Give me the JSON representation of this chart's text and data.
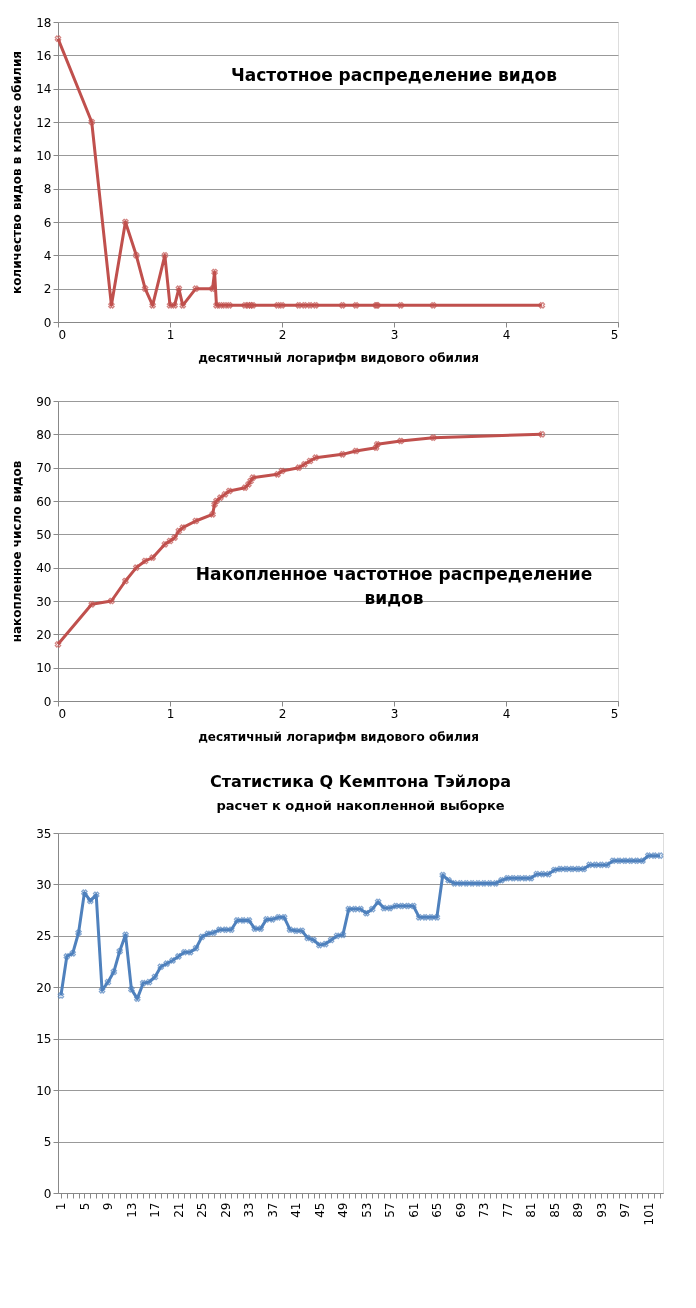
{
  "chart_data": [
    {
      "type": "line",
      "title": "Частотное распределение видов",
      "xlabel": "десятичный логарифм видового обилия",
      "ylabel": "количество видов в классе обилия",
      "x": [
        0,
        0.301,
        0.477,
        0.602,
        0.699,
        0.778,
        0.845,
        0.954,
        1.0,
        1.041,
        1.079,
        1.114,
        1.23,
        1.38,
        1.398,
        1.415,
        1.45,
        1.49,
        1.53,
        1.67,
        1.7,
        1.72,
        1.74,
        1.96,
        2.0,
        2.15,
        2.2,
        2.25,
        2.3,
        2.54,
        2.66,
        2.84,
        2.85,
        3.06,
        3.35,
        4.32
      ],
      "series": [
        {
          "color": "#c0504d",
          "values": [
            17,
            12,
            1,
            6,
            4,
            2,
            1,
            4,
            1,
            1,
            2,
            1,
            2,
            2,
            3,
            1,
            1,
            1,
            1,
            1,
            1,
            1,
            1,
            1,
            1,
            1,
            1,
            1,
            1,
            1,
            1,
            1,
            1,
            1,
            1,
            1
          ]
        }
      ],
      "xlim": [
        0,
        5
      ],
      "xticks": [
        0,
        1,
        2,
        3,
        4,
        5
      ],
      "ylim": [
        0,
        18
      ],
      "yticks": [
        0,
        2,
        4,
        6,
        8,
        10,
        12,
        14,
        16,
        18
      ],
      "grid": "y",
      "marker": "cross"
    },
    {
      "type": "line",
      "title": "Накопленное частотное распределение\nвидов",
      "xlabel": "десятичный логарифм видового обилия",
      "ylabel": "накопленное число видов",
      "x": [
        0,
        0.301,
        0.477,
        0.602,
        0.699,
        0.778,
        0.845,
        0.954,
        1.0,
        1.041,
        1.079,
        1.114,
        1.23,
        1.38,
        1.398,
        1.415,
        1.45,
        1.49,
        1.53,
        1.67,
        1.7,
        1.72,
        1.74,
        1.96,
        2.0,
        2.15,
        2.2,
        2.25,
        2.3,
        2.54,
        2.66,
        2.84,
        2.85,
        3.06,
        3.35,
        4.32
      ],
      "series": [
        {
          "color": "#c0504d",
          "values": [
            17,
            29,
            30,
            36,
            40,
            42,
            43,
            47,
            48,
            49,
            51,
            52,
            54,
            56,
            59,
            60,
            61,
            62,
            63,
            64,
            65,
            66,
            67,
            68,
            69,
            70,
            71,
            72,
            73,
            74,
            75,
            76,
            77,
            78,
            79,
            80
          ]
        }
      ],
      "xlim": [
        0,
        5
      ],
      "xticks": [
        0,
        1,
        2,
        3,
        4,
        5
      ],
      "ylim": [
        0,
        90
      ],
      "yticks": [
        0,
        10,
        20,
        30,
        40,
        50,
        60,
        70,
        80,
        90
      ],
      "grid": "y",
      "marker": "cross"
    },
    {
      "type": "line",
      "title": "Статистика Q Кемптона Тэйлора",
      "subtitle": "расчет к одной накопленной выборке",
      "categories": [
        "1",
        null,
        null,
        null,
        "5",
        null,
        null,
        null,
        "9",
        null,
        null,
        null,
        "13",
        null,
        null,
        null,
        "17",
        null,
        null,
        null,
        "21",
        null,
        null,
        null,
        "25",
        null,
        null,
        null,
        "29",
        null,
        null,
        null,
        "33",
        null,
        null,
        null,
        "37",
        null,
        null,
        null,
        "41",
        null,
        null,
        null,
        "45",
        null,
        null,
        null,
        "49",
        null,
        null,
        null,
        "53",
        null,
        null,
        null,
        "57",
        null,
        null,
        null,
        "61",
        null,
        null,
        null,
        "65",
        null,
        null,
        null,
        "69",
        null,
        null,
        null,
        "73",
        null,
        null,
        null,
        "77",
        null,
        null,
        null,
        "81",
        null,
        null,
        null,
        "85",
        null,
        null,
        null,
        "89",
        null,
        null,
        null,
        "93",
        null,
        null,
        null,
        "97",
        null,
        null,
        null,
        "101",
        null,
        null
      ],
      "series": [
        {
          "color": "#4f81bd",
          "values": [
            19.2,
            23,
            23.3,
            25.3,
            29.2,
            28.4,
            29,
            19.7,
            20.5,
            21.5,
            23.5,
            25.1,
            19.8,
            18.9,
            20.4,
            20.5,
            21,
            22,
            22.3,
            22.6,
            23,
            23.4,
            23.4,
            23.8,
            24.9,
            25.2,
            25.3,
            25.6,
            25.6,
            25.6,
            26.5,
            26.5,
            26.5,
            25.7,
            25.7,
            26.6,
            26.6,
            26.8,
            26.8,
            25.6,
            25.5,
            25.5,
            24.8,
            24.6,
            24.1,
            24.2,
            24.6,
            25,
            25.1,
            27.6,
            27.6,
            27.6,
            27.2,
            27.6,
            28.3,
            27.7,
            27.7,
            27.9,
            27.9,
            27.9,
            27.9,
            26.8,
            26.8,
            26.8,
            26.8,
            30.9,
            30.4,
            30.1,
            30.1,
            30.1,
            30.1,
            30.1,
            30.1,
            30.1,
            30.1,
            30.4,
            30.6,
            30.6,
            30.6,
            30.6,
            30.6,
            31,
            31,
            31,
            31.4,
            31.5,
            31.5,
            31.5,
            31.5,
            31.5,
            31.9,
            31.9,
            31.9,
            31.9,
            32.3,
            32.3,
            32.3,
            32.3,
            32.3,
            32.3,
            32.8,
            32.8,
            32.8
          ]
        }
      ],
      "ylim": [
        0,
        35
      ],
      "yticks": [
        0,
        5,
        10,
        15,
        20,
        25,
        30,
        35
      ],
      "grid": "y",
      "marker": "cross"
    }
  ]
}
